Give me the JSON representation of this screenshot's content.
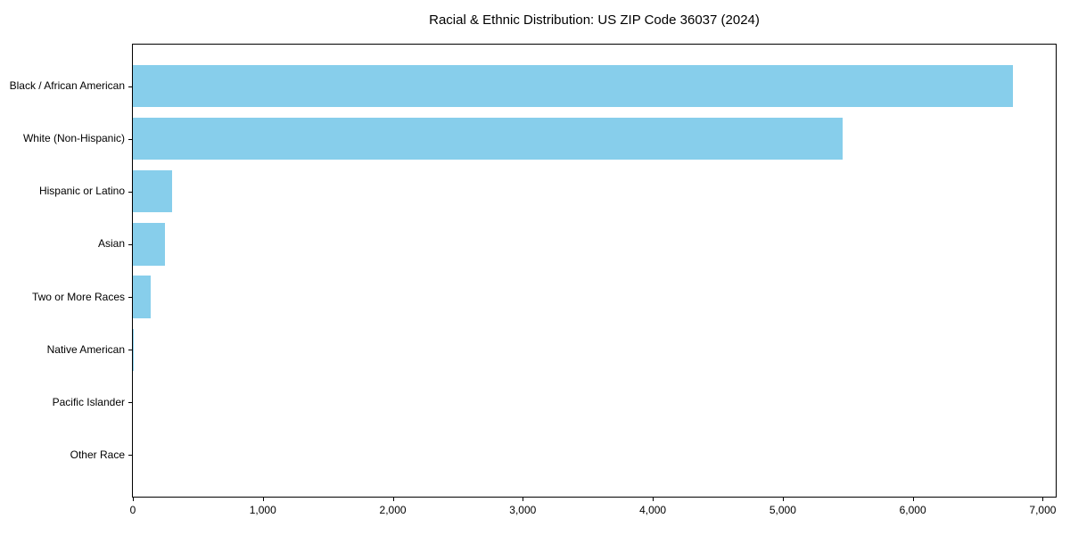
{
  "chart_data": {
    "type": "bar",
    "orientation": "horizontal",
    "title": "Racial & Ethnic Distribution: US ZIP Code 36037 (2024)",
    "categories": [
      "Black / African American",
      "White (Non-Hispanic)",
      "Hispanic or Latino",
      "Asian",
      "Two or More Races",
      "Native American",
      "Pacific Islander",
      "Other Race"
    ],
    "values": [
      6770,
      5460,
      300,
      250,
      140,
      8,
      0,
      0
    ],
    "xlabel": "",
    "ylabel": "",
    "xlim": [
      0,
      7100
    ],
    "x_ticks": [
      0,
      1000,
      2000,
      3000,
      4000,
      5000,
      6000,
      7000
    ],
    "x_tick_labels": [
      "0",
      "1,000",
      "2,000",
      "3,000",
      "4,000",
      "5,000",
      "6,000",
      "7,000"
    ],
    "grid": false,
    "legend_position": "none",
    "bar_color": "#87CEEB",
    "spine_color": "#000000",
    "text_color": "#000000",
    "background_color": "#ffffff"
  }
}
